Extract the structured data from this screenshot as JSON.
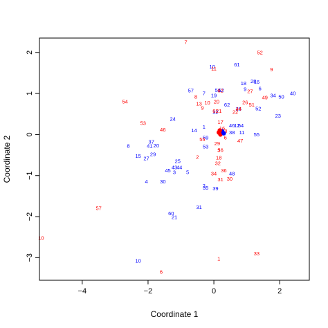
{
  "chart_data": {
    "type": "scatter",
    "title": "",
    "xlabel": "Coordinate 1",
    "ylabel": "Coordinate 2",
    "xlim": [
      -5.3,
      2.9
    ],
    "ylim": [
      -3.55,
      2.35
    ],
    "xticks": [
      -4,
      -2,
      0,
      2
    ],
    "yticks": [
      -3,
      -2,
      -1,
      0,
      1,
      2
    ],
    "grid": false,
    "legend": "none",
    "colors": {
      "blue": "#0000ff",
      "red": "#ff0000"
    },
    "series": [
      {
        "color": "blue",
        "points": [
          {
            "label": "10",
            "x": -0.05,
            "y": 1.65
          },
          {
            "label": "61",
            "x": 0.7,
            "y": 1.7
          },
          {
            "label": "28",
            "x": 1.2,
            "y": 1.3
          },
          {
            "label": "16",
            "x": 1.3,
            "y": 1.28
          },
          {
            "label": "18",
            "x": 0.9,
            "y": 1.25
          },
          {
            "label": "57",
            "x": -0.7,
            "y": 1.07
          },
          {
            "label": "7",
            "x": -0.3,
            "y": 1.0
          },
          {
            "label": "19",
            "x": 0.0,
            "y": 0.95
          },
          {
            "label": "51",
            "x": 0.12,
            "y": 1.08
          },
          {
            "label": "52",
            "x": 0.22,
            "y": 1.08
          },
          {
            "label": "9",
            "x": 0.95,
            "y": 1.1
          },
          {
            "label": "6",
            "x": 1.4,
            "y": 1.12
          },
          {
            "label": "34",
            "x": 1.8,
            "y": 0.95
          },
          {
            "label": "50",
            "x": 2.05,
            "y": 0.92
          },
          {
            "label": "40",
            "x": 2.4,
            "y": 1.0
          },
          {
            "label": "62",
            "x": 0.4,
            "y": 0.72
          },
          {
            "label": "32",
            "x": 0.05,
            "y": 0.55
          },
          {
            "label": "26",
            "x": 0.75,
            "y": 0.62
          },
          {
            "label": "52",
            "x": 1.35,
            "y": 0.63
          },
          {
            "label": "23",
            "x": 1.95,
            "y": 0.45
          },
          {
            "label": "24",
            "x": -1.25,
            "y": 0.38
          },
          {
            "label": "1",
            "x": -0.3,
            "y": 0.18
          },
          {
            "label": "14",
            "x": -0.6,
            "y": 0.1
          },
          {
            "label": "46",
            "x": 0.55,
            "y": 0.22
          },
          {
            "label": "12",
            "x": 0.7,
            "y": 0.22
          },
          {
            "label": "54",
            "x": 0.82,
            "y": 0.22
          },
          {
            "label": "38",
            "x": 0.55,
            "y": 0.05
          },
          {
            "label": "11",
            "x": 0.85,
            "y": 0.05
          },
          {
            "label": "55",
            "x": 1.3,
            "y": 0.0
          },
          {
            "label": "59",
            "x": -0.25,
            "y": -0.08
          },
          {
            "label": "37",
            "x": -1.9,
            "y": -0.18
          },
          {
            "label": "41",
            "x": -1.95,
            "y": -0.28
          },
          {
            "label": "20",
            "x": -1.75,
            "y": -0.27
          },
          {
            "label": "8",
            "x": -2.6,
            "y": -0.28
          },
          {
            "label": "53",
            "x": -0.25,
            "y": -0.3
          },
          {
            "label": "29",
            "x": -1.85,
            "y": -0.48
          },
          {
            "label": "15",
            "x": -2.3,
            "y": -0.52
          },
          {
            "label": "27",
            "x": -2.05,
            "y": -0.58
          },
          {
            "label": "25",
            "x": -1.1,
            "y": -0.65
          },
          {
            "label": "43",
            "x": -1.2,
            "y": -0.8
          },
          {
            "label": "44",
            "x": -1.05,
            "y": -0.8
          },
          {
            "label": "45",
            "x": -1.4,
            "y": -0.88
          },
          {
            "label": "3",
            "x": -1.2,
            "y": -0.92
          },
          {
            "label": "5",
            "x": -0.8,
            "y": -0.92
          },
          {
            "label": "48",
            "x": 0.55,
            "y": -0.95
          },
          {
            "label": "4",
            "x": -2.05,
            "y": -1.15
          },
          {
            "label": "30",
            "x": -1.55,
            "y": -1.15
          },
          {
            "label": "2",
            "x": -0.3,
            "y": -1.25
          },
          {
            "label": "35",
            "x": -0.25,
            "y": -1.3
          },
          {
            "label": "39",
            "x": 0.05,
            "y": -1.32
          },
          {
            "label": "31",
            "x": -0.45,
            "y": -1.77
          },
          {
            "label": "60",
            "x": -1.3,
            "y": -1.92
          },
          {
            "label": "21",
            "x": -1.2,
            "y": -2.02
          },
          {
            "label": "10",
            "x": -2.3,
            "y": -3.08
          }
        ]
      },
      {
        "color": "red",
        "points": [
          {
            "label": "7",
            "x": -0.85,
            "y": 2.25
          },
          {
            "label": "52",
            "x": 1.4,
            "y": 2.0
          },
          {
            "label": "9",
            "x": 1.75,
            "y": 1.58
          },
          {
            "label": "11",
            "x": 0.0,
            "y": 1.6
          },
          {
            "label": "62",
            "x": 0.2,
            "y": 1.07
          },
          {
            "label": "8",
            "x": -0.55,
            "y": 0.92
          },
          {
            "label": "27",
            "x": 1.1,
            "y": 1.05
          },
          {
            "label": "49",
            "x": 1.55,
            "y": 0.9
          },
          {
            "label": "54",
            "x": -2.7,
            "y": 0.8
          },
          {
            "label": "13",
            "x": -0.45,
            "y": 0.75
          },
          {
            "label": "10",
            "x": -0.2,
            "y": 0.77
          },
          {
            "label": "20",
            "x": 0.08,
            "y": 0.8
          },
          {
            "label": "26",
            "x": 0.95,
            "y": 0.78
          },
          {
            "label": "51",
            "x": 1.15,
            "y": 0.72
          },
          {
            "label": "9",
            "x": -0.35,
            "y": 0.65
          },
          {
            "label": "61",
            "x": 0.05,
            "y": 0.57
          },
          {
            "label": "21",
            "x": 0.15,
            "y": 0.57
          },
          {
            "label": "44",
            "x": 0.75,
            "y": 0.62
          },
          {
            "label": "22",
            "x": 0.65,
            "y": 0.55
          },
          {
            "label": "53",
            "x": -2.15,
            "y": 0.28
          },
          {
            "label": "17",
            "x": 0.2,
            "y": 0.3
          },
          {
            "label": "46",
            "x": -1.55,
            "y": 0.12
          },
          {
            "label": "16",
            "x": 0.25,
            "y": 0.15
          },
          {
            "label": "58",
            "x": 0.32,
            "y": 0.08
          },
          {
            "label": "55",
            "x": -0.35,
            "y": -0.12
          },
          {
            "label": "6",
            "x": 0.35,
            "y": -0.08
          },
          {
            "label": "47",
            "x": 0.8,
            "y": -0.15
          },
          {
            "label": "29",
            "x": 0.1,
            "y": -0.22
          },
          {
            "label": "3",
            "x": 0.15,
            "y": -0.38
          },
          {
            "label": "56",
            "x": 0.2,
            "y": -0.38
          },
          {
            "label": "2",
            "x": -0.5,
            "y": -0.55
          },
          {
            "label": "18",
            "x": 0.15,
            "y": -0.57
          },
          {
            "label": "32",
            "x": 0.12,
            "y": -0.7
          },
          {
            "label": "36",
            "x": 0.3,
            "y": -0.88
          },
          {
            "label": "34",
            "x": 0.0,
            "y": -0.95
          },
          {
            "label": "31",
            "x": 0.2,
            "y": -1.1
          },
          {
            "label": "30",
            "x": 0.48,
            "y": -1.08
          },
          {
            "label": "57",
            "x": -3.5,
            "y": -1.8
          },
          {
            "label": "10",
            "x": -5.25,
            "y": -2.52
          },
          {
            "label": "33",
            "x": 1.3,
            "y": -2.9
          },
          {
            "label": "1",
            "x": 0.15,
            "y": -3.03
          },
          {
            "label": "6",
            "x": -1.6,
            "y": -3.35
          }
        ]
      }
    ],
    "center_cluster": [
      {
        "x": 0.15,
        "y": 0.05
      },
      {
        "x": 0.25,
        "y": 0.08
      },
      {
        "x": 0.2,
        "y": 0.0
      },
      {
        "x": 0.3,
        "y": 0.03
      },
      {
        "x": 0.18,
        "y": 0.1
      }
    ]
  }
}
